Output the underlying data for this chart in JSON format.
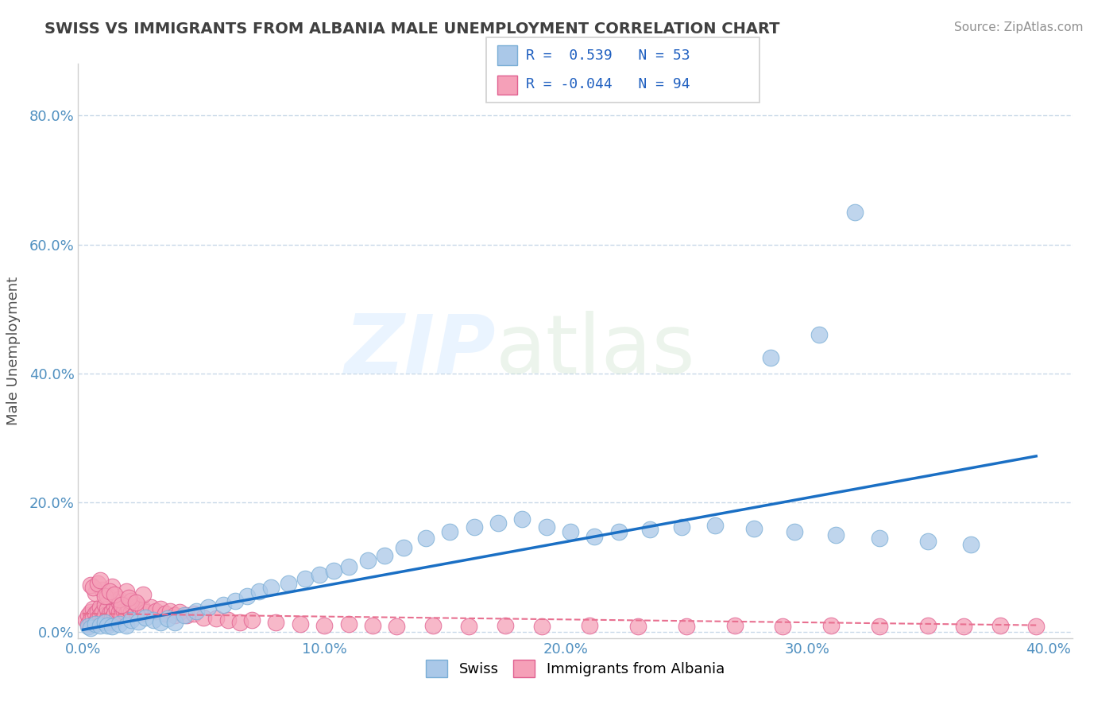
{
  "title": "SWISS VS IMMIGRANTS FROM ALBANIA MALE UNEMPLOYMENT CORRELATION CHART",
  "source": "Source: ZipAtlas.com",
  "ylabel": "Male Unemployment",
  "xlim": [
    -0.002,
    0.41
  ],
  "ylim": [
    -0.01,
    0.88
  ],
  "yticks": [
    0.0,
    0.2,
    0.4,
    0.6,
    0.8
  ],
  "xticks": [
    0.0,
    0.1,
    0.2,
    0.3,
    0.4
  ],
  "blue_color": "#aac8e8",
  "blue_edge_color": "#7aaed6",
  "pink_color": "#f5a0b8",
  "pink_edge_color": "#e06090",
  "line_blue": "#1a6fc4",
  "line_pink": "#e87090",
  "legend_r_blue": "0.539",
  "legend_n_blue": "53",
  "legend_r_pink": "-0.044",
  "legend_n_pink": "94",
  "title_color": "#404040",
  "source_color": "#909090",
  "grid_color": "#c8d8e8",
  "swiss_points_x": [
    0.002,
    0.003,
    0.005,
    0.007,
    0.009,
    0.01,
    0.012,
    0.015,
    0.018,
    0.02,
    0.023,
    0.026,
    0.029,
    0.032,
    0.035,
    0.038,
    0.042,
    0.047,
    0.052,
    0.058,
    0.063,
    0.068,
    0.073,
    0.078,
    0.085,
    0.092,
    0.098,
    0.104,
    0.11,
    0.118,
    0.125,
    0.133,
    0.142,
    0.152,
    0.162,
    0.172,
    0.182,
    0.192,
    0.202,
    0.212,
    0.222,
    0.235,
    0.248,
    0.262,
    0.278,
    0.295,
    0.312,
    0.33,
    0.35,
    0.368,
    0.32,
    0.305,
    0.285
  ],
  "swiss_points_y": [
    0.008,
    0.006,
    0.012,
    0.01,
    0.015,
    0.01,
    0.008,
    0.012,
    0.01,
    0.018,
    0.016,
    0.022,
    0.018,
    0.014,
    0.02,
    0.015,
    0.025,
    0.032,
    0.038,
    0.042,
    0.048,
    0.055,
    0.062,
    0.068,
    0.075,
    0.082,
    0.088,
    0.095,
    0.1,
    0.11,
    0.118,
    0.13,
    0.145,
    0.155,
    0.162,
    0.168,
    0.175,
    0.162,
    0.155,
    0.148,
    0.155,
    0.158,
    0.162,
    0.165,
    0.16,
    0.155,
    0.15,
    0.145,
    0.14,
    0.135,
    0.65,
    0.46,
    0.425
  ],
  "albania_points_x": [
    0.001,
    0.002,
    0.002,
    0.003,
    0.003,
    0.004,
    0.004,
    0.005,
    0.005,
    0.006,
    0.006,
    0.007,
    0.007,
    0.008,
    0.008,
    0.009,
    0.009,
    0.01,
    0.01,
    0.011,
    0.011,
    0.012,
    0.012,
    0.013,
    0.013,
    0.014,
    0.014,
    0.015,
    0.015,
    0.016,
    0.016,
    0.017,
    0.018,
    0.019,
    0.02,
    0.021,
    0.022,
    0.023,
    0.024,
    0.025,
    0.026,
    0.028,
    0.03,
    0.032,
    0.034,
    0.036,
    0.038,
    0.04,
    0.043,
    0.046,
    0.05,
    0.055,
    0.06,
    0.065,
    0.07,
    0.08,
    0.09,
    0.1,
    0.11,
    0.12,
    0.13,
    0.145,
    0.16,
    0.175,
    0.19,
    0.21,
    0.23,
    0.25,
    0.27,
    0.29,
    0.31,
    0.33,
    0.35,
    0.365,
    0.38,
    0.395,
    0.005,
    0.008,
    0.01,
    0.012,
    0.015,
    0.018,
    0.02,
    0.025,
    0.003,
    0.004,
    0.006,
    0.007,
    0.009,
    0.011,
    0.013,
    0.016,
    0.019,
    0.022
  ],
  "albania_points_y": [
    0.018,
    0.025,
    0.012,
    0.03,
    0.018,
    0.035,
    0.022,
    0.028,
    0.015,
    0.032,
    0.02,
    0.038,
    0.025,
    0.03,
    0.018,
    0.042,
    0.025,
    0.035,
    0.02,
    0.028,
    0.015,
    0.032,
    0.022,
    0.04,
    0.028,
    0.035,
    0.02,
    0.045,
    0.03,
    0.038,
    0.025,
    0.032,
    0.028,
    0.035,
    0.03,
    0.038,
    0.032,
    0.04,
    0.028,
    0.035,
    0.03,
    0.038,
    0.032,
    0.035,
    0.028,
    0.032,
    0.025,
    0.03,
    0.025,
    0.028,
    0.022,
    0.02,
    0.018,
    0.015,
    0.018,
    0.015,
    0.012,
    0.01,
    0.012,
    0.01,
    0.008,
    0.01,
    0.008,
    0.01,
    0.008,
    0.01,
    0.008,
    0.008,
    0.01,
    0.008,
    0.01,
    0.008,
    0.01,
    0.008,
    0.01,
    0.008,
    0.06,
    0.065,
    0.055,
    0.07,
    0.05,
    0.062,
    0.048,
    0.058,
    0.072,
    0.068,
    0.075,
    0.08,
    0.055,
    0.062,
    0.058,
    0.042,
    0.052,
    0.045
  ],
  "blue_line_x": [
    0.0,
    0.395
  ],
  "blue_line_y": [
    0.003,
    0.272
  ],
  "pink_line_x": [
    0.0,
    0.395
  ],
  "pink_line_y": [
    0.028,
    0.01
  ]
}
